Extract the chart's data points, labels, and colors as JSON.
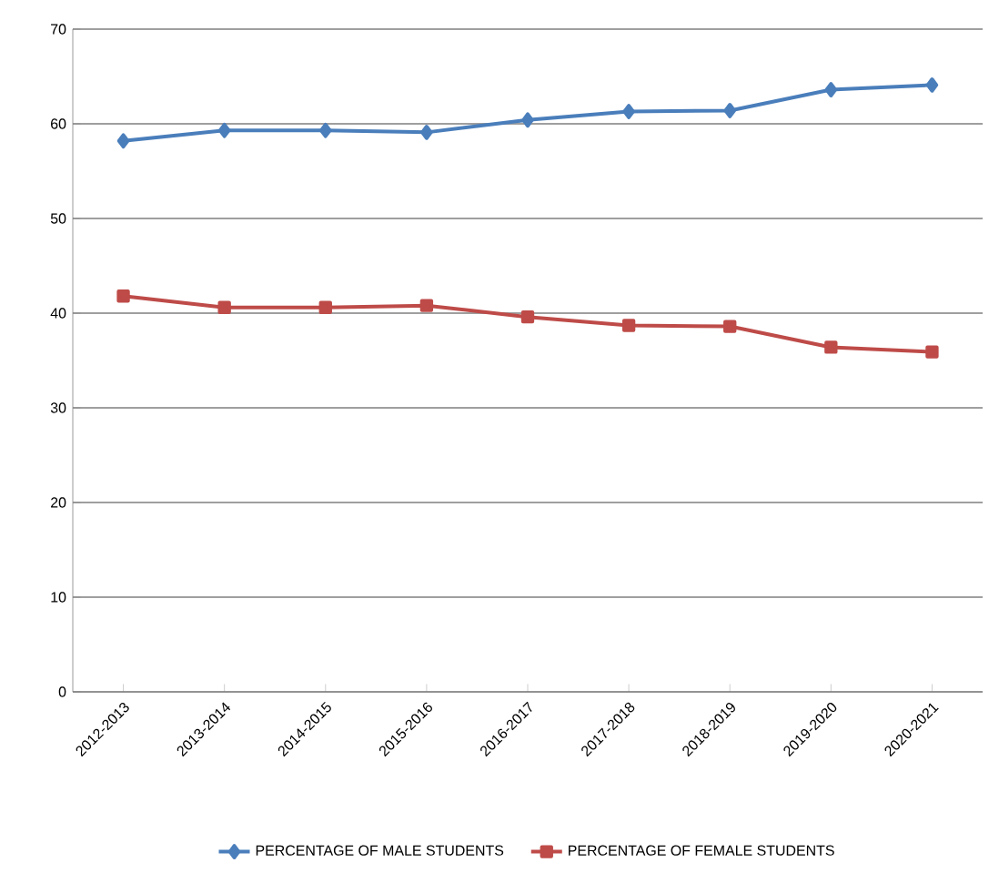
{
  "chart_data": {
    "type": "line",
    "categories": [
      "2012-2013",
      "2013-2014",
      "2014-2015",
      "2015-2016",
      "2016-2017",
      "2017-2018",
      "2018-2019",
      "2019-2020",
      "2020-2021"
    ],
    "series": [
      {
        "name": "PERCENTAGE OF MALE STUDENTS",
        "color": "#4a7ebb",
        "marker": "diamond",
        "values": [
          58.2,
          59.3,
          59.3,
          59.1,
          60.4,
          61.3,
          61.4,
          63.6,
          64.1
        ]
      },
      {
        "name": "PERCENTAGE OF FEMALE STUDENTS",
        "color": "#be4b48",
        "marker": "square",
        "values": [
          41.8,
          40.6,
          40.6,
          40.8,
          39.6,
          38.7,
          38.6,
          36.4,
          35.9
        ]
      }
    ],
    "ylim": [
      0,
      70
    ],
    "yticks": [
      0,
      10,
      20,
      30,
      40,
      50,
      60,
      70
    ],
    "grid": "y",
    "legend": "bottom",
    "line_style": "solid"
  }
}
